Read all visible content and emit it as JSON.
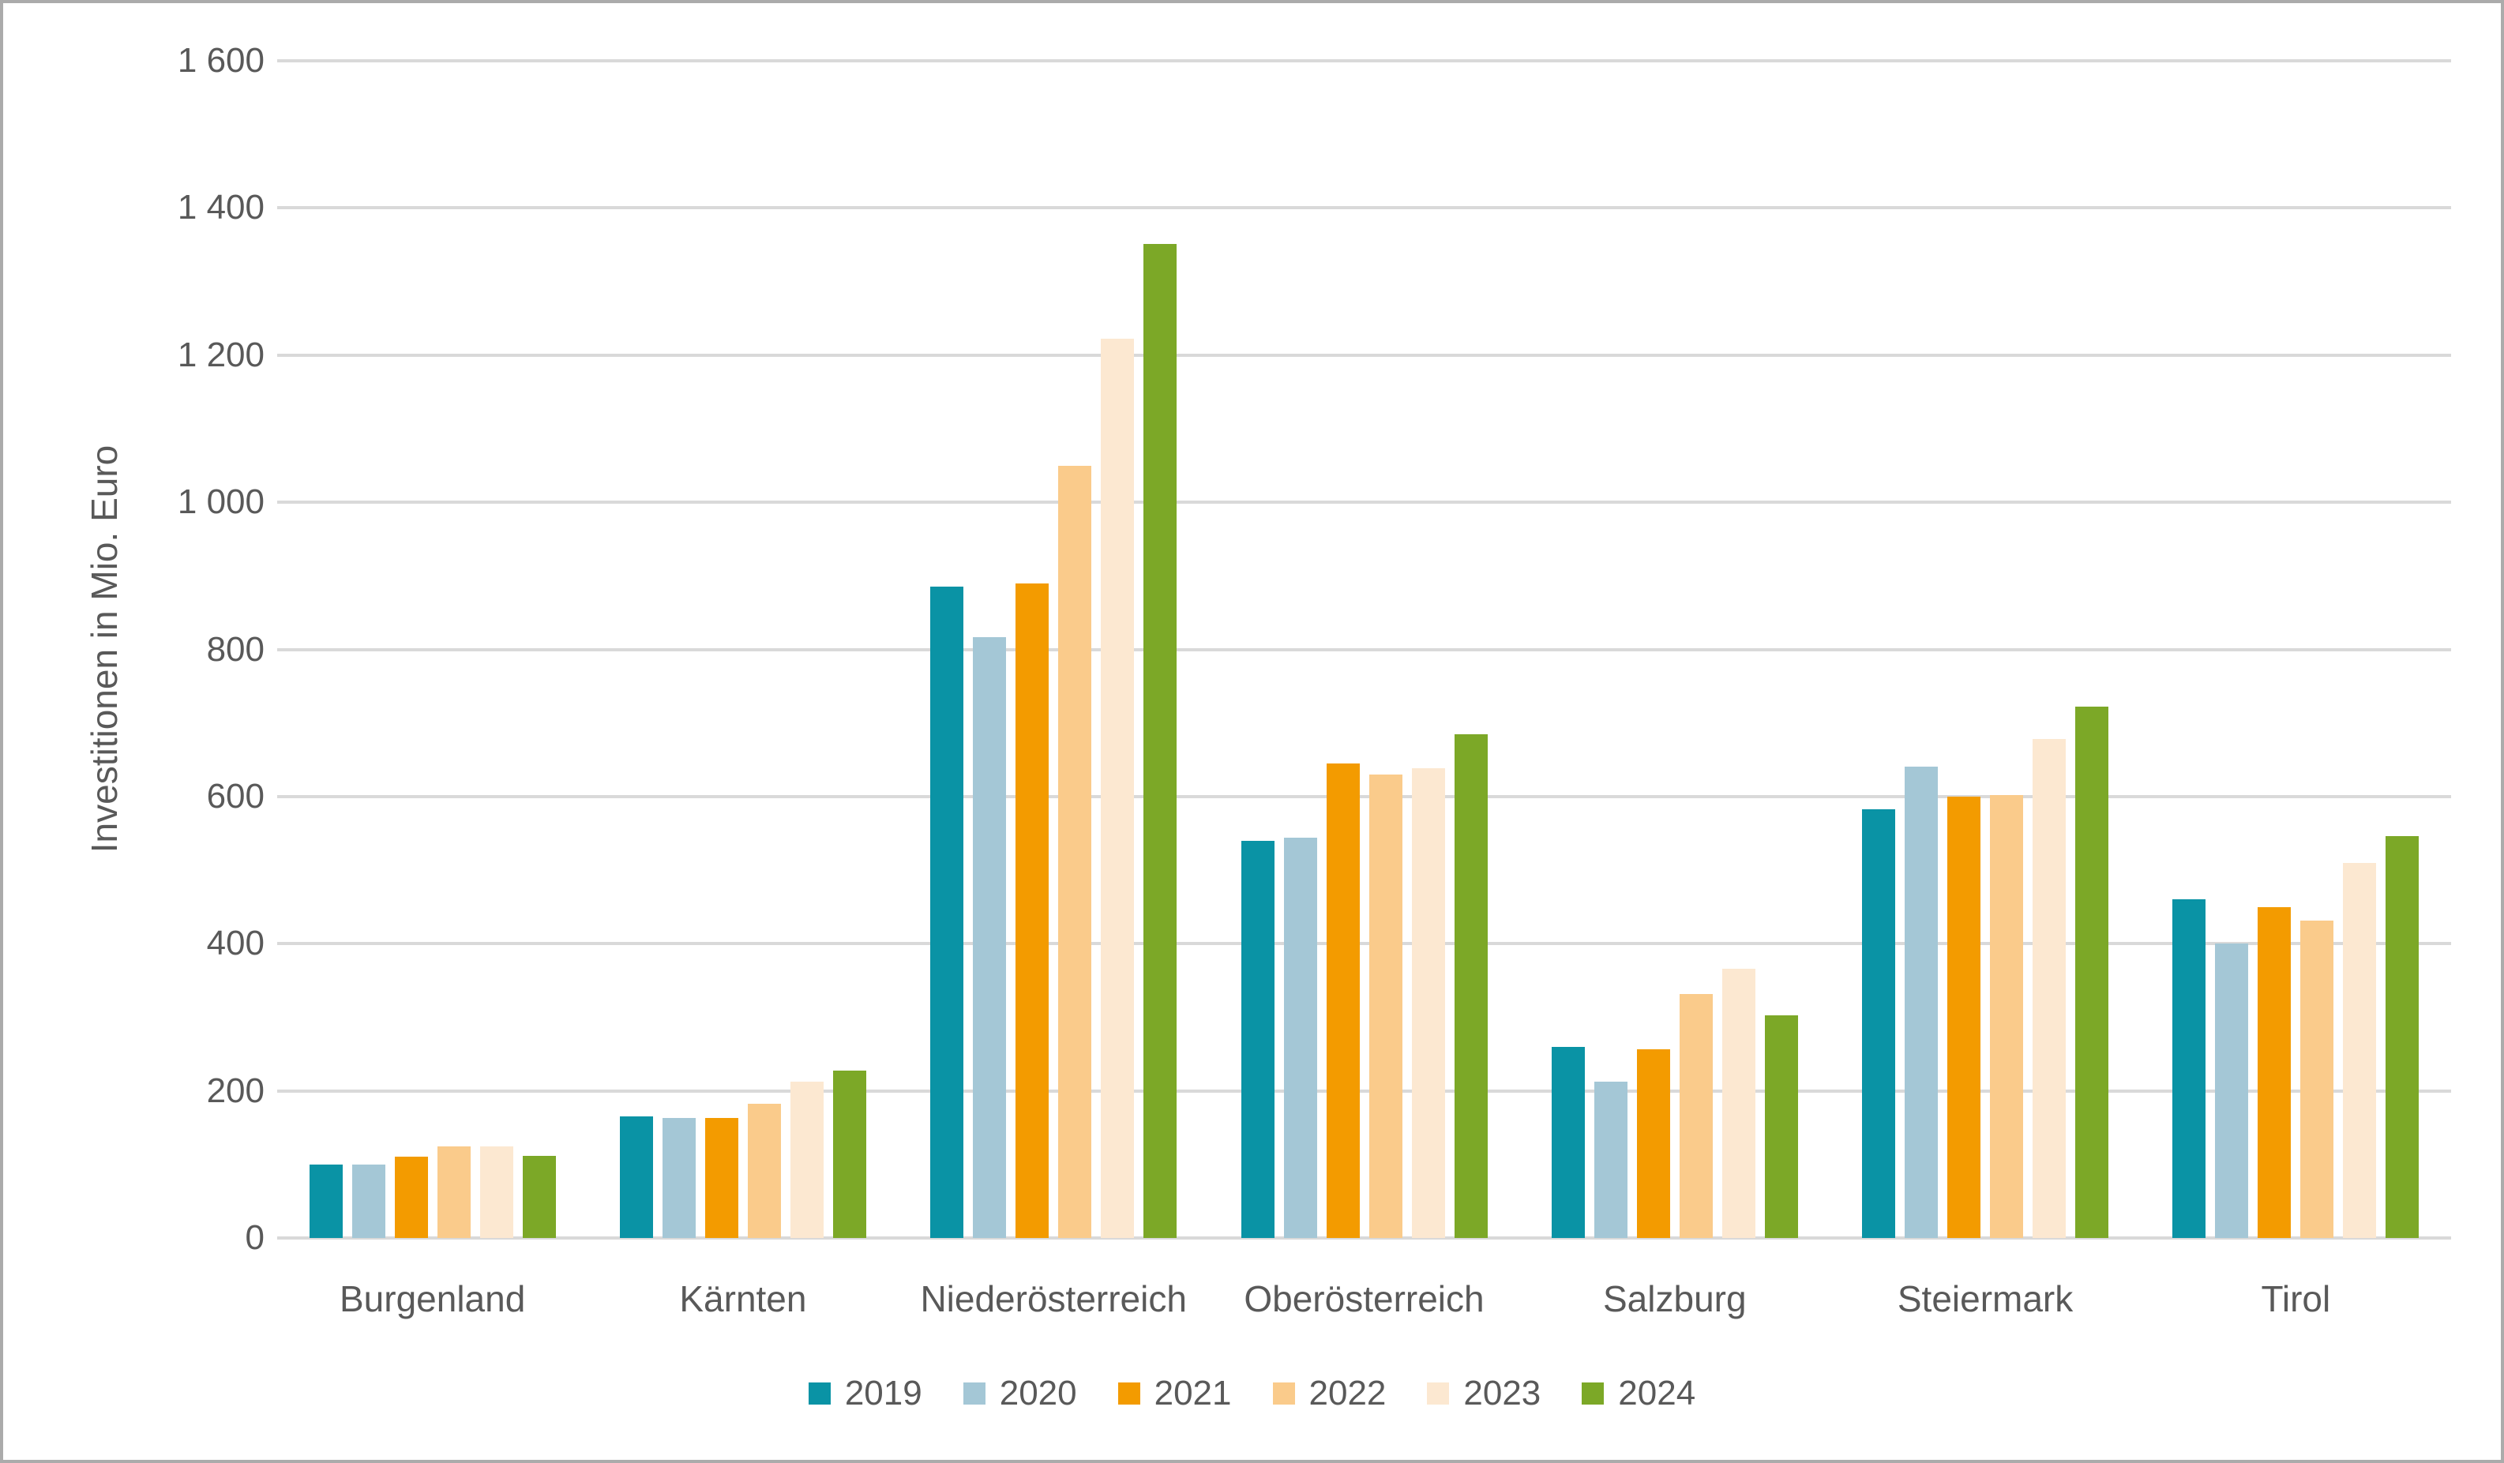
{
  "chart_data": {
    "type": "bar",
    "title": "",
    "xlabel": "",
    "ylabel": "Investitionen in Mio. Euro",
    "ylim": [
      0,
      1600
    ],
    "ytick_step": 200,
    "ytick_labels": [
      "0",
      "200",
      "400",
      "600",
      "800",
      "1 000",
      "1 200",
      "1 400",
      "1 600"
    ],
    "grid": true,
    "legend_position": "bottom",
    "categories": [
      "Burgenland",
      "Kärnten",
      "Niederösterreich",
      "Oberösterreich",
      "Salzburg",
      "Steiermark",
      "Tirol"
    ],
    "series": [
      {
        "name": "2019",
        "color": "#0a93a5",
        "values": [
          100,
          165,
          885,
          540,
          260,
          583,
          460
        ]
      },
      {
        "name": "2020",
        "color": "#a4c7d6",
        "values": [
          100,
          163,
          817,
          544,
          213,
          641,
          400
        ]
      },
      {
        "name": "2021",
        "color": "#f39b00",
        "values": [
          111,
          163,
          890,
          645,
          257,
          600,
          450
        ]
      },
      {
        "name": "2022",
        "color": "#facb8b",
        "values": [
          124,
          182,
          1050,
          630,
          332,
          602,
          431
        ]
      },
      {
        "name": "2023",
        "color": "#fce8d1",
        "values": [
          125,
          212,
          1222,
          638,
          366,
          678,
          510
        ]
      },
      {
        "name": "2024",
        "color": "#7ca827",
        "values": [
          112,
          228,
          1351,
          685,
          303,
          722,
          546
        ]
      }
    ]
  },
  "colors": {
    "text": "#595959",
    "gridline": "#d9d9d9",
    "border": "#ababab",
    "background": "#ffffff"
  }
}
